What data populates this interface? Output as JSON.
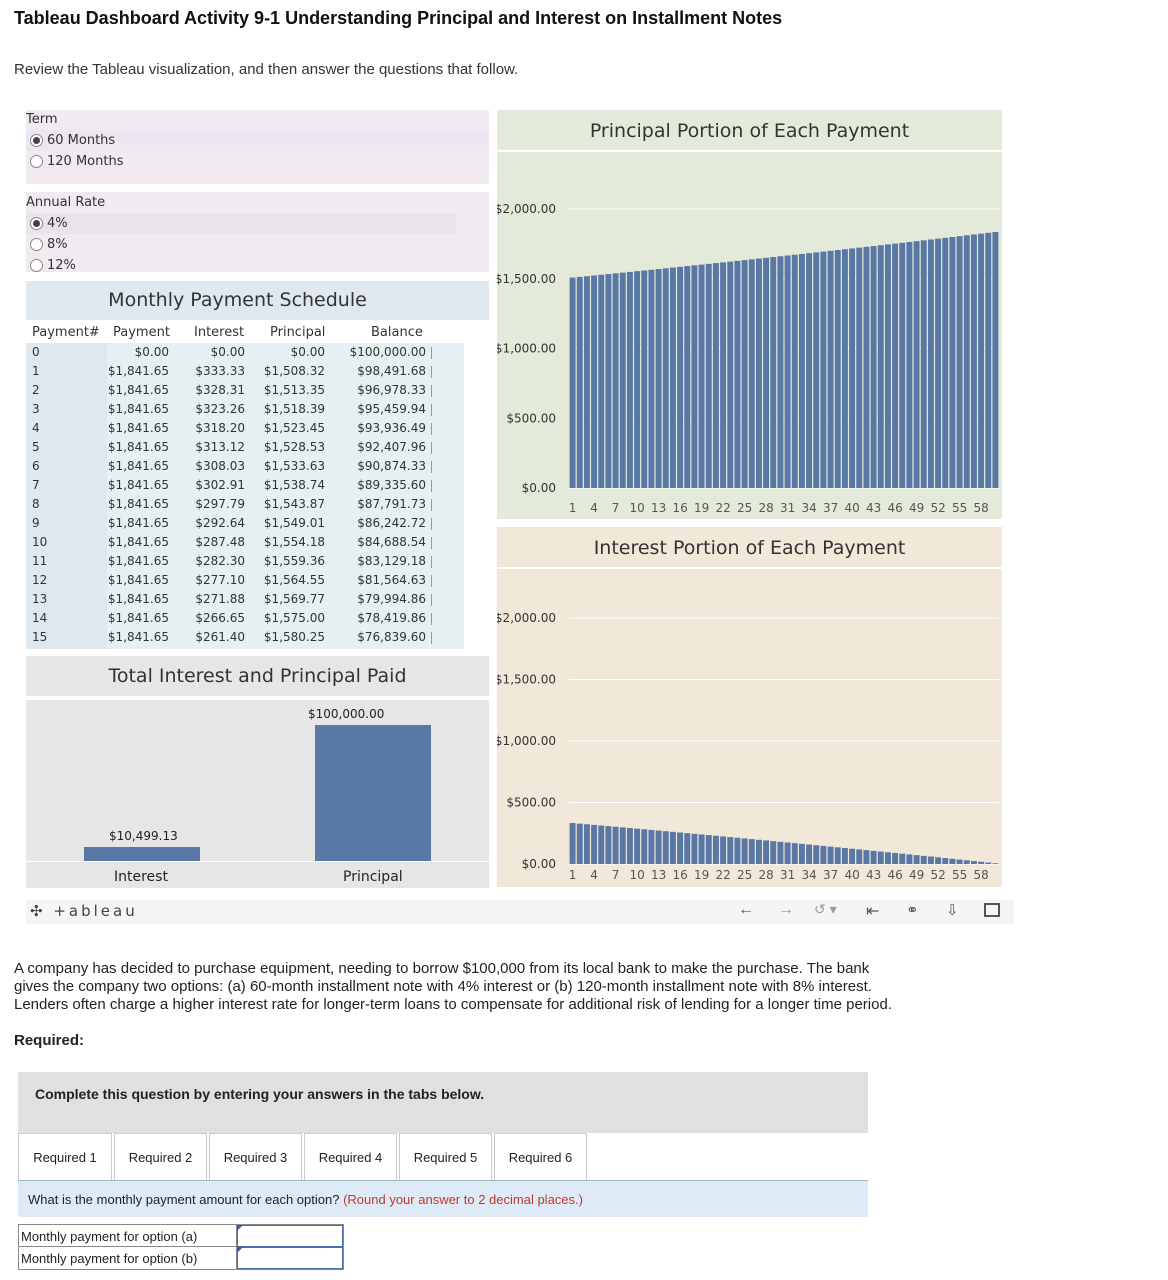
{
  "page": {
    "title": "Tableau Dashboard Activity 9-1 Understanding Principal and Interest on Installment Notes",
    "intro": "Review the Tableau visualization, and then answer the questions that follow."
  },
  "filters": {
    "term": {
      "label": "Term",
      "options": [
        "60 Months",
        "120 Months"
      ],
      "selected": "60 Months"
    },
    "rate": {
      "label": "Annual Rate",
      "options": [
        "4%",
        "8%",
        "12%"
      ],
      "selected": "4%"
    }
  },
  "schedule": {
    "title": "Monthly Payment Schedule",
    "columns": [
      "Payment#",
      "Payment",
      "Interest",
      "Principal",
      "Balance"
    ],
    "rows": [
      [
        "0",
        "$0.00",
        "$0.00",
        "$0.00",
        "$100,000.00"
      ],
      [
        "1",
        "$1,841.65",
        "$333.33",
        "$1,508.32",
        "$98,491.68"
      ],
      [
        "2",
        "$1,841.65",
        "$328.31",
        "$1,513.35",
        "$96,978.33"
      ],
      [
        "3",
        "$1,841.65",
        "$323.26",
        "$1,518.39",
        "$95,459.94"
      ],
      [
        "4",
        "$1,841.65",
        "$318.20",
        "$1,523.45",
        "$93,936.49"
      ],
      [
        "5",
        "$1,841.65",
        "$313.12",
        "$1,528.53",
        "$92,407.96"
      ],
      [
        "6",
        "$1,841.65",
        "$308.03",
        "$1,533.63",
        "$90,874.33"
      ],
      [
        "7",
        "$1,841.65",
        "$302.91",
        "$1,538.74",
        "$89,335.60"
      ],
      [
        "8",
        "$1,841.65",
        "$297.79",
        "$1,543.87",
        "$87,791.73"
      ],
      [
        "9",
        "$1,841.65",
        "$292.64",
        "$1,549.01",
        "$86,242.72"
      ],
      [
        "10",
        "$1,841.65",
        "$287.48",
        "$1,554.18",
        "$84,688.54"
      ],
      [
        "11",
        "$1,841.65",
        "$282.30",
        "$1,559.36",
        "$83,129.18"
      ],
      [
        "12",
        "$1,841.65",
        "$277.10",
        "$1,564.55",
        "$81,564.63"
      ],
      [
        "13",
        "$1,841.65",
        "$271.88",
        "$1,569.77",
        "$79,994.86"
      ],
      [
        "14",
        "$1,841.65",
        "$266.65",
        "$1,575.00",
        "$78,419.86"
      ],
      [
        "15",
        "$1,841.65",
        "$261.40",
        "$1,580.25",
        "$76,839.60"
      ]
    ]
  },
  "totals": {
    "title": "Total Interest and Principal Paid",
    "interest_label": "Interest",
    "interest_value": "$10,499.13",
    "principal_label": "Principal",
    "principal_value": "$100,000.00"
  },
  "chart_data": [
    {
      "type": "bar",
      "title": "Total Interest and Principal Paid",
      "categories": [
        "Interest",
        "Principal"
      ],
      "values": [
        10499.13,
        100000.0
      ],
      "data_labels": [
        "$10,499.13",
        "$100,000.00"
      ]
    },
    {
      "type": "bar",
      "title": "Principal Portion of Each Payment",
      "x": "payment 1-60",
      "y_ticks": [
        "$2,000.00",
        "$1,500.00",
        "$1,000.00",
        "$500.00",
        "$0.00"
      ],
      "ylim": [
        0,
        2000
      ],
      "x_ticks": [
        "1",
        "4",
        "7",
        "10",
        "13",
        "16",
        "19",
        "22",
        "25",
        "28",
        "31",
        "34",
        "37",
        "40",
        "43",
        "46",
        "49",
        "52",
        "55",
        "58"
      ],
      "first_value": 1508.32,
      "last_value": 1835.53,
      "color": "#5a78a6"
    },
    {
      "type": "bar",
      "title": "Interest Portion of Each Payment",
      "x": "payment 1-60",
      "y_ticks": [
        "$2,000.00",
        "$1,500.00",
        "$1,000.00",
        "$500.00",
        "$0.00"
      ],
      "ylim": [
        0,
        2000
      ],
      "x_ticks": [
        "1",
        "4",
        "7",
        "10",
        "13",
        "16",
        "19",
        "22",
        "25",
        "28",
        "31",
        "34",
        "37",
        "40",
        "43",
        "46",
        "49",
        "52",
        "55",
        "58"
      ],
      "first_value": 333.33,
      "last_value": 6.12,
      "color": "#5a78a6"
    }
  ],
  "tableau_logo": "+ableau",
  "question": {
    "text1": "A company has decided to purchase equipment, needing to borrow $100,000 from its local bank to make the purchase. The bank",
    "text2": "gives the company two options: (a) 60-month installment note with 4% interest or (b) 120-month installment note with 8% interest.",
    "text3": "Lenders often charge a higher interest rate for longer-term loans to compensate for additional risk of lending for a longer time period.",
    "required": "Required:",
    "instruction": "Complete this question by entering your answers in the tabs below.",
    "tabs": [
      "Required 1",
      "Required 2",
      "Required 3",
      "Required 4",
      "Required 5",
      "Required 6"
    ],
    "prompt": "What is the monthly payment amount for each option?",
    "prompt_note": "(Round your answer to 2 decimal places.)",
    "answer_a_label": "Monthly payment for option (a)",
    "answer_b_label": "Monthly payment for option (b)",
    "answer_a_value": "",
    "answer_b_value": ""
  }
}
